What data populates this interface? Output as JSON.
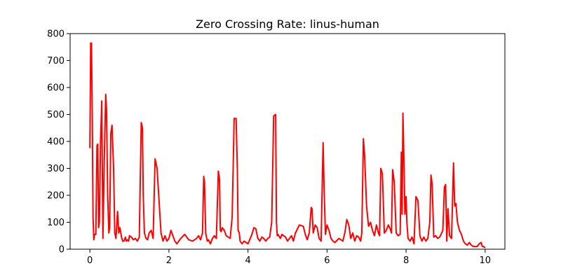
{
  "chart_data": {
    "type": "line",
    "title": "Zero Crossing Rate: linus-human",
    "xlabel": "",
    "ylabel": "",
    "xlim": [
      -0.5,
      10.5
    ],
    "ylim": [
      0,
      800
    ],
    "xticks": [
      0,
      2,
      4,
      6,
      8,
      10
    ],
    "yticks": [
      0,
      100,
      200,
      300,
      400,
      500,
      600,
      700,
      800
    ],
    "grid": false,
    "line_color": "#ff0000",
    "series": [
      {
        "x": [
          0.0,
          0.02,
          0.04,
          0.06,
          0.08,
          0.1,
          0.12,
          0.15,
          0.18,
          0.2,
          0.22,
          0.24,
          0.27,
          0.3,
          0.33,
          0.36,
          0.4,
          0.42,
          0.45,
          0.48,
          0.5,
          0.53,
          0.56,
          0.6,
          0.63,
          0.66,
          0.7,
          0.73,
          0.76,
          0.8,
          0.83,
          0.86,
          0.9,
          0.92,
          0.95,
          0.98,
          1.0,
          1.05,
          1.1,
          1.15,
          1.2,
          1.25,
          1.3,
          1.33,
          1.35,
          1.38,
          1.42,
          1.46,
          1.5,
          1.55,
          1.6,
          1.65,
          1.7,
          1.75,
          1.8,
          1.85,
          1.9,
          1.95,
          2.0,
          2.05,
          2.1,
          2.15,
          2.2,
          2.3,
          2.4,
          2.5,
          2.6,
          2.7,
          2.75,
          2.8,
          2.85,
          2.88,
          2.9,
          2.93,
          2.97,
          3.0,
          3.05,
          3.1,
          3.15,
          3.2,
          3.25,
          3.28,
          3.3,
          3.32,
          3.35,
          3.4,
          3.45,
          3.5,
          3.55,
          3.6,
          3.65,
          3.7,
          3.73,
          3.75,
          3.78,
          3.8,
          3.85,
          3.9,
          3.95,
          4.0,
          4.1,
          4.15,
          4.2,
          4.25,
          4.3,
          4.35,
          4.4,
          4.45,
          4.5,
          4.55,
          4.6,
          4.65,
          4.7,
          4.72,
          4.74,
          4.76,
          4.78,
          4.82,
          4.86,
          4.9,
          4.95,
          5.0,
          5.05,
          5.1,
          5.15,
          5.2,
          5.3,
          5.4,
          5.45,
          5.5,
          5.55,
          5.6,
          5.62,
          5.65,
          5.7,
          5.75,
          5.8,
          5.85,
          5.9,
          5.93,
          5.96,
          6.0,
          6.05,
          6.1,
          6.15,
          6.2,
          6.3,
          6.4,
          6.45,
          6.5,
          6.55,
          6.6,
          6.65,
          6.7,
          6.75,
          6.8,
          6.85,
          6.88,
          6.92,
          6.95,
          7.0,
          7.05,
          7.1,
          7.15,
          7.2,
          7.25,
          7.3,
          7.33,
          7.36,
          7.4,
          7.45,
          7.5,
          7.55,
          7.6,
          7.63,
          7.66,
          7.7,
          7.75,
          7.8,
          7.85,
          7.88,
          7.9,
          7.92,
          7.95,
          7.97,
          8.0,
          8.02,
          8.05,
          8.1,
          8.15,
          8.2,
          8.25,
          8.3,
          8.35,
          8.4,
          8.45,
          8.5,
          8.55,
          8.6,
          8.63,
          8.66,
          8.7,
          8.75,
          8.8,
          8.85,
          8.9,
          8.93,
          8.97,
          9.0,
          9.03,
          9.06,
          9.1,
          9.15,
          9.2,
          9.23,
          9.26,
          9.3,
          9.35,
          9.4,
          9.45,
          9.5,
          9.55,
          9.6,
          9.65,
          9.7,
          9.75,
          9.8,
          9.85,
          9.9,
          9.93,
          9.96,
          10.0
        ],
        "y": [
          375,
          765,
          765,
          500,
          120,
          35,
          55,
          55,
          385,
          390,
          80,
          100,
          400,
          550,
          40,
          300,
          575,
          520,
          200,
          60,
          80,
          430,
          460,
          300,
          60,
          40,
          140,
          60,
          80,
          45,
          30,
          30,
          45,
          30,
          35,
          30,
          50,
          45,
          35,
          40,
          30,
          45,
          470,
          450,
          200,
          60,
          40,
          35,
          60,
          70,
          40,
          335,
          300,
          180,
          60,
          30,
          50,
          30,
          40,
          70,
          50,
          30,
          20,
          40,
          55,
          35,
          30,
          40,
          50,
          35,
          60,
          270,
          250,
          60,
          30,
          35,
          20,
          40,
          50,
          40,
          290,
          260,
          70,
          65,
          80,
          70,
          50,
          45,
          40,
          120,
          485,
          485,
          300,
          70,
          60,
          30,
          20,
          30,
          25,
          20,
          55,
          80,
          75,
          40,
          30,
          45,
          40,
          30,
          40,
          45,
          100,
          495,
          500,
          100,
          50,
          55,
          50,
          40,
          55,
          50,
          45,
          30,
          40,
          50,
          30,
          60,
          90,
          85,
          55,
          35,
          60,
          155,
          150,
          60,
          90,
          80,
          40,
          30,
          395,
          200,
          55,
          90,
          70,
          40,
          30,
          25,
          40,
          30,
          60,
          110,
          90,
          40,
          60,
          30,
          50,
          45,
          30,
          60,
          410,
          350,
          160,
          85,
          100,
          70,
          50,
          90,
          60,
          50,
          300,
          280,
          60,
          70,
          90,
          75,
          60,
          295,
          250,
          60,
          50,
          55,
          360,
          130,
          505,
          300,
          130,
          195,
          100,
          40,
          30,
          45,
          20,
          195,
          180,
          50,
          30,
          45,
          30,
          40,
          100,
          275,
          240,
          45,
          50,
          40,
          45,
          60,
          70,
          230,
          240,
          30,
          150,
          50,
          40,
          320,
          160,
          170,
          100,
          70,
          55,
          30,
          20,
          15,
          25,
          15,
          10,
          10,
          10,
          20,
          25,
          10,
          10,
          5
        ]
      }
    ]
  }
}
